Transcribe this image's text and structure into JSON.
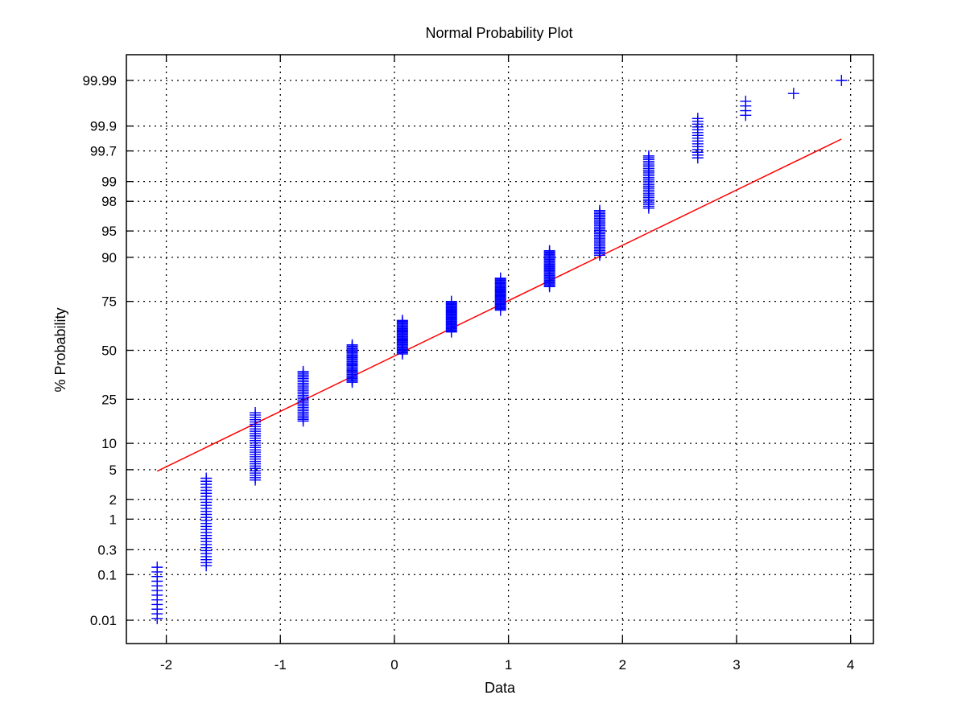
{
  "chart_data": {
    "type": "scatter",
    "title": "Normal Probability Plot",
    "xlabel": "Data",
    "ylabel": "% Probability",
    "xlim": [
      -2.35,
      4.2
    ],
    "x_ticks": [
      "-2",
      "-1",
      "0",
      "1",
      "2",
      "3",
      "4"
    ],
    "y_ticks": [
      "0.01",
      "0.1",
      "0.3",
      "1",
      "2",
      "5",
      "10",
      "25",
      "50",
      "75",
      "90",
      "95",
      "98",
      "99",
      "99.7",
      "99.9",
      "99.99"
    ],
    "grid": true,
    "marker": "+",
    "colors": {
      "points": "#0000ff",
      "fit_line": "#ff0000",
      "grid": "#000000"
    },
    "fit_line": {
      "x": [
        -2.08,
        3.92
      ],
      "p": [
        4.8,
        99.82
      ]
    },
    "groups": [
      {
        "x": -2.08,
        "p_min": 0.011,
        "p_max": 0.14,
        "n": 12
      },
      {
        "x": -1.65,
        "p_min": 0.15,
        "p_max": 3.9,
        "n": 30
      },
      {
        "x": -1.22,
        "p_min": 3.7,
        "p_max": 19.5,
        "n": 30
      },
      {
        "x": -0.8,
        "p_min": 16.5,
        "p_max": 38.5,
        "n": 30
      },
      {
        "x": -0.37,
        "p_min": 33,
        "p_max": 53,
        "n": 30
      },
      {
        "x": 0.07,
        "p_min": 48,
        "p_max": 66,
        "n": 30
      },
      {
        "x": 0.5,
        "p_min": 60,
        "p_max": 75,
        "n": 30
      },
      {
        "x": 0.93,
        "p_min": 71,
        "p_max": 84,
        "n": 30
      },
      {
        "x": 1.36,
        "p_min": 81,
        "p_max": 91.5,
        "n": 30
      },
      {
        "x": 1.8,
        "p_min": 90.5,
        "p_max": 97.3,
        "n": 30
      },
      {
        "x": 2.23,
        "p_min": 97.5,
        "p_max": 99.63,
        "n": 30
      },
      {
        "x": 2.66,
        "p_min": 99.6,
        "p_max": 99.93,
        "n": 15
      },
      {
        "x": 3.08,
        "p_min": 99.94,
        "p_max": 99.97,
        "n": 4
      },
      {
        "x": 3.5,
        "p_min": 99.98,
        "p_max": 99.98,
        "n": 1
      },
      {
        "x": 3.92,
        "p_min": 99.99,
        "p_max": 99.99,
        "n": 1
      }
    ]
  }
}
